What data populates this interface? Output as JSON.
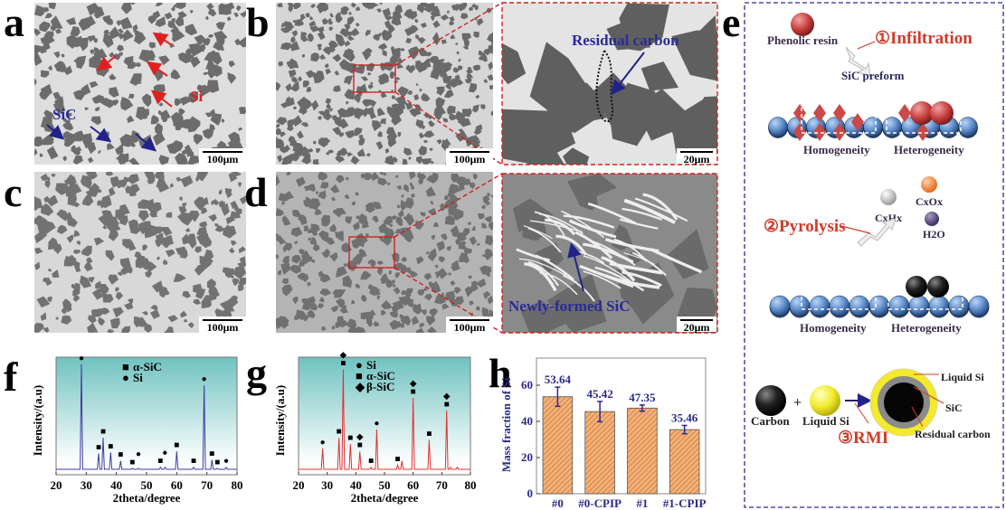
{
  "panel_labels": {
    "a": "a",
    "b": "b",
    "c": "c",
    "d": "d",
    "e": "e",
    "f": "f",
    "g": "g",
    "h": "h"
  },
  "micrographs": {
    "a": {
      "scale_bar": "100μm",
      "annotations": {
        "si": "Si",
        "sic": "SiC"
      }
    },
    "b": {
      "scale_bar": "100μm"
    },
    "b_zoom": {
      "scale_bar": "20μm",
      "annotation": "Residual carbon"
    },
    "c": {
      "scale_bar": "100μm"
    },
    "d": {
      "scale_bar": "100μm"
    },
    "d_zoom": {
      "scale_bar": "20μm",
      "annotation": "Newly-formed SiC"
    }
  },
  "schematic": {
    "step1": {
      "title": "①Infiltration",
      "resin": "Phenolic resin",
      "preform": "SiC preform",
      "left": "Homogeneity",
      "right": "Heterogeneity"
    },
    "step2": {
      "title": "②Pyrolysis",
      "gas1": "CxHx",
      "gas2": "CxOx",
      "gas3": "H2O",
      "left": "Homogeneity",
      "right": "Heterogeneity"
    },
    "step3": {
      "title": "③RMI",
      "carbon": "Carbon",
      "plus": "+",
      "liquid_si": "Liquid Si",
      "ring_liquid_si": "Liquid Si",
      "ring_sic": "SiC",
      "ring_core": "Residual carbon"
    },
    "colors": {
      "resin": "#c0392b",
      "sic": "#4f7fbf",
      "gas1": "#b0b0b0",
      "gas2": "#f07a2e",
      "gas3": "#4b3a73",
      "carbon": "#111111",
      "si": "#f2ea2a",
      "title": "#d03b2a"
    }
  },
  "chart_data": [
    {
      "type": "line",
      "id": "f",
      "title": "",
      "xlabel": "2theta/degree",
      "ylabel": "Intensity/(a.u)",
      "xlim": [
        20,
        80
      ],
      "ylim": [
        0,
        105
      ],
      "xticks": [
        20,
        30,
        40,
        50,
        60,
        70,
        80
      ],
      "legend": [
        {
          "symbol": "■",
          "label": "α-SiC"
        },
        {
          "symbol": "●",
          "label": "Si"
        }
      ],
      "legend_position": "top-center",
      "color": "#3a3aa0",
      "peaks": [
        {
          "x": 28.4,
          "y": 100,
          "markers": [
            "●"
          ]
        },
        {
          "x": 34.1,
          "y": 15,
          "markers": [
            "■"
          ]
        },
        {
          "x": 35.6,
          "y": 30,
          "markers": [
            "■"
          ]
        },
        {
          "x": 38.1,
          "y": 16,
          "markers": [
            "■"
          ]
        },
        {
          "x": 41.4,
          "y": 8,
          "markers": [
            "■"
          ]
        },
        {
          "x": 45.3,
          "y": 1,
          "markers": [
            "■"
          ]
        },
        {
          "x": 47.3,
          "y": 1,
          "markers": [
            "●"
          ]
        },
        {
          "x": 54.6,
          "y": 2,
          "markers": [
            "■"
          ]
        },
        {
          "x": 56.1,
          "y": 2,
          "markers": [
            "●"
          ]
        },
        {
          "x": 60.0,
          "y": 17,
          "markers": [
            "■"
          ]
        },
        {
          "x": 65.6,
          "y": 2,
          "markers": [
            "■"
          ]
        },
        {
          "x": 69.1,
          "y": 80,
          "markers": [
            "●"
          ]
        },
        {
          "x": 71.7,
          "y": 9,
          "markers": [
            "■"
          ]
        },
        {
          "x": 73.5,
          "y": 1,
          "markers": [
            "■"
          ]
        },
        {
          "x": 76.4,
          "y": 2,
          "markers": [
            "●"
          ]
        }
      ]
    },
    {
      "type": "line",
      "id": "g",
      "title": "",
      "xlabel": "2theta/degree",
      "ylabel": "Intensity/(a.u)",
      "xlim": [
        20,
        80
      ],
      "ylim": [
        0,
        105
      ],
      "xticks": [
        20,
        30,
        40,
        50,
        60,
        70,
        80
      ],
      "legend": [
        {
          "symbol": "●",
          "label": "Si"
        },
        {
          "symbol": "■",
          "label": "α-SiC"
        },
        {
          "symbol": "◆",
          "label": "β-SiC"
        }
      ],
      "legend_position": "top-center",
      "color": "#e03030",
      "peaks": [
        {
          "x": 28.4,
          "y": 20,
          "markers": [
            "●"
          ]
        },
        {
          "x": 34.1,
          "y": 30,
          "markers": [
            "■"
          ]
        },
        {
          "x": 35.6,
          "y": 95,
          "markers": [
            "■",
            "◆"
          ]
        },
        {
          "x": 38.1,
          "y": 24,
          "markers": [
            "■"
          ]
        },
        {
          "x": 41.4,
          "y": 17,
          "markers": [
            "■",
            "◆"
          ]
        },
        {
          "x": 45.3,
          "y": 2,
          "markers": [
            "■"
          ]
        },
        {
          "x": 47.3,
          "y": 38,
          "markers": [
            "●"
          ]
        },
        {
          "x": 54.6,
          "y": 4,
          "markers": [
            "■"
          ]
        },
        {
          "x": 56.1,
          "y": 8,
          "markers": []
        },
        {
          "x": 60.0,
          "y": 68,
          "markers": [
            "■",
            "◆"
          ]
        },
        {
          "x": 65.6,
          "y": 28,
          "markers": [
            "■"
          ]
        },
        {
          "x": 71.7,
          "y": 56,
          "markers": [
            "■",
            "◆"
          ]
        },
        {
          "x": 73.0,
          "y": 2,
          "markers": []
        },
        {
          "x": 75.4,
          "y": 2,
          "markers": []
        }
      ]
    },
    {
      "type": "bar",
      "id": "h",
      "title": "",
      "xlabel": "",
      "ylabel": "Mass fraction of Si",
      "categories": [
        "#0",
        "#0-CPIP",
        "#1",
        "#1-CPIP"
      ],
      "values": [
        53.64,
        45.42,
        47.35,
        35.46
      ],
      "value_labels": [
        "53.64",
        "45.42",
        "47.35",
        "35.46"
      ],
      "errors": [
        5.3,
        5.6,
        1.7,
        2.3
      ],
      "ylim": [
        0,
        75
      ],
      "yticks": [
        0,
        20,
        40,
        60
      ],
      "bar_color": "#f4b37c",
      "hatch_color": "#d98a4a",
      "label_color": "#2a2a8a"
    }
  ]
}
